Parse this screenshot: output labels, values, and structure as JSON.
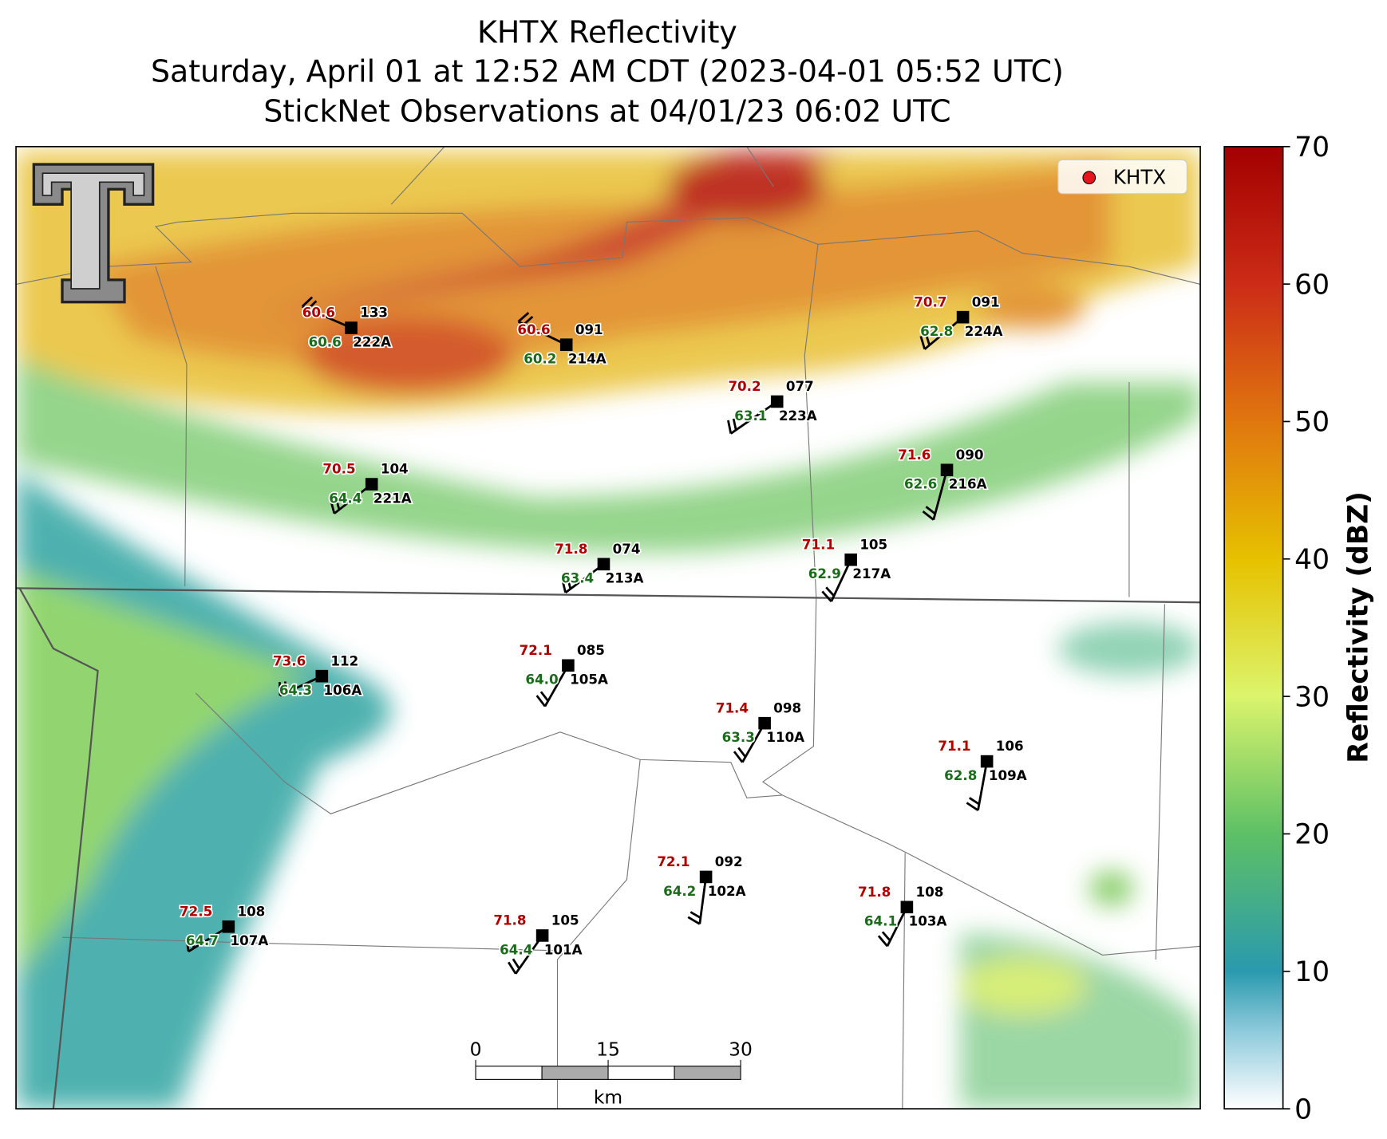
{
  "header": {
    "title_lines": [
      "KHTX Reflectivity",
      "Saturday, April 01 at 12:52 AM CDT (2023-04-01 05:52 UTC)",
      "StickNet Observations at 04/01/23 06:02 UTC"
    ]
  },
  "legend": {
    "label": "KHTX",
    "color": "#e8141c"
  },
  "colorbar": {
    "label": "Reflectivity (dBZ)",
    "lim": [
      0,
      70
    ],
    "ticks": [
      0,
      10,
      20,
      30,
      40,
      50,
      60,
      70
    ]
  },
  "scale_bar": {
    "ticks": [
      0,
      15,
      30
    ],
    "unit": "km"
  },
  "stations": [
    {
      "id": "222A",
      "temperature": "60.6",
      "dewpoint": "60.6",
      "code": "133"
    },
    {
      "id": "214A",
      "temperature": "60.6",
      "dewpoint": "60.2",
      "code": "091"
    },
    {
      "id": "224A",
      "temperature": "70.7",
      "dewpoint": "62.8",
      "code": "091"
    },
    {
      "id": "223A",
      "temperature": "70.2",
      "dewpoint": "63.1",
      "code": "077"
    },
    {
      "id": "221A",
      "temperature": "70.5",
      "dewpoint": "64.4",
      "code": "104"
    },
    {
      "id": "216A",
      "temperature": "71.6",
      "dewpoint": "62.6",
      "code": "090"
    },
    {
      "id": "213A",
      "temperature": "71.8",
      "dewpoint": "63.4",
      "code": "074"
    },
    {
      "id": "217A",
      "temperature": "71.1",
      "dewpoint": "62.9",
      "code": "105"
    },
    {
      "id": "106A",
      "temperature": "73.6",
      "dewpoint": "64.3",
      "code": "112"
    },
    {
      "id": "105A",
      "temperature": "72.1",
      "dewpoint": "64.0",
      "code": "085"
    },
    {
      "id": "110A",
      "temperature": "71.4",
      "dewpoint": "63.3",
      "code": "098"
    },
    {
      "id": "109A",
      "temperature": "71.1",
      "dewpoint": "62.8",
      "code": "106"
    },
    {
      "id": "102A",
      "temperature": "72.1",
      "dewpoint": "64.2",
      "code": "092"
    },
    {
      "id": "103A",
      "temperature": "71.8",
      "dewpoint": "64.1",
      "code": "108"
    },
    {
      "id": "107A",
      "temperature": "72.5",
      "dewpoint": "64.7",
      "code": "108"
    },
    {
      "id": "101A",
      "temperature": "71.8",
      "dewpoint": "64.4",
      "code": "105"
    }
  ]
}
